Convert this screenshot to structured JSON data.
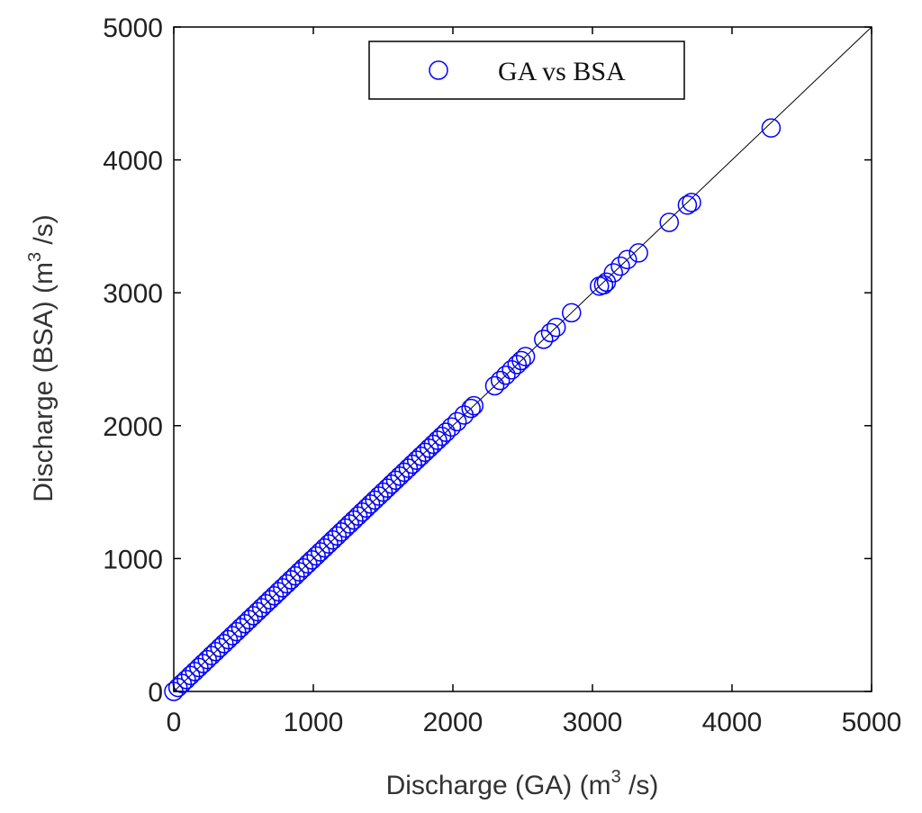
{
  "chart_data": {
    "type": "scatter",
    "xlabel": "Discharge (GA) (m",
    "xlabel_sup": "3",
    "xlabel_tail": " /s)",
    "ylabel": "Discharge (BSA) (m",
    "ylabel_sup": "3",
    "ylabel_tail": " /s)",
    "xlim": [
      0,
      5000
    ],
    "ylim": [
      0,
      5000
    ],
    "xticks": [
      "0",
      "1000",
      "2000",
      "3000",
      "4000",
      "5000"
    ],
    "yticks": [
      "0",
      "1000",
      "2000",
      "3000",
      "4000",
      "5000"
    ],
    "grid": false,
    "legend_position": "top-center",
    "reference_line": {
      "from": [
        0,
        0
      ],
      "to": [
        5000,
        5000
      ],
      "color": "#000000"
    },
    "series": [
      {
        "name": "GA vs BSA",
        "marker": "open-circle",
        "color": "#0000ff",
        "x": [
          0,
          30,
          60,
          90,
          120,
          150,
          180,
          210,
          240,
          270,
          300,
          330,
          360,
          390,
          420,
          450,
          480,
          510,
          540,
          570,
          600,
          630,
          660,
          690,
          720,
          750,
          780,
          810,
          840,
          870,
          900,
          930,
          960,
          990,
          1020,
          1050,
          1080,
          1110,
          1140,
          1170,
          1200,
          1230,
          1260,
          1290,
          1320,
          1350,
          1380,
          1410,
          1440,
          1470,
          1500,
          1530,
          1560,
          1590,
          1620,
          1650,
          1680,
          1710,
          1740,
          1770,
          1800,
          1830,
          1860,
          1890,
          1920,
          1950,
          1990,
          2030,
          2080,
          2130,
          2150,
          2300,
          2340,
          2380,
          2420,
          2460,
          2490,
          2520,
          2650,
          2700,
          2740,
          2850,
          3050,
          3080,
          3100,
          3150,
          3200,
          3250,
          3330,
          3550,
          3680,
          3710,
          4280
        ],
        "y": [
          0,
          30,
          60,
          90,
          120,
          150,
          180,
          210,
          240,
          270,
          300,
          330,
          360,
          390,
          420,
          450,
          480,
          510,
          540,
          570,
          600,
          630,
          660,
          690,
          720,
          750,
          780,
          810,
          840,
          870,
          900,
          930,
          960,
          990,
          1020,
          1050,
          1080,
          1110,
          1140,
          1170,
          1200,
          1230,
          1260,
          1290,
          1320,
          1350,
          1380,
          1410,
          1440,
          1470,
          1500,
          1530,
          1560,
          1590,
          1620,
          1650,
          1680,
          1710,
          1740,
          1770,
          1800,
          1830,
          1860,
          1890,
          1920,
          1950,
          1990,
          2030,
          2080,
          2130,
          2150,
          2300,
          2340,
          2380,
          2420,
          2460,
          2490,
          2520,
          2650,
          2700,
          2740,
          2850,
          3050,
          3060,
          3080,
          3150,
          3200,
          3250,
          3300,
          3530,
          3660,
          3680,
          4240
        ]
      }
    ]
  }
}
